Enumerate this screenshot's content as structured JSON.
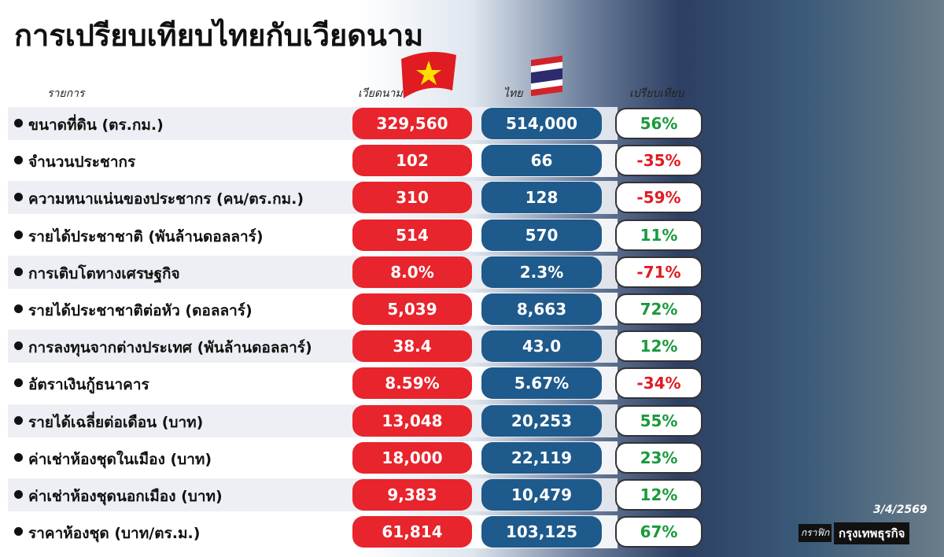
{
  "header": {
    "title": "การเปรียบเทียบไทยกับเวียดนาม",
    "col_item": "รายการ",
    "col_vietnam": "เวียดนาม",
    "col_thai": "ไทย",
    "col_compare": "เปรียบเทียบ"
  },
  "table": {
    "rows": [
      [
        "ขนาดที่ดิน (ตร.กม.)",
        "329,560",
        "514,000",
        "56%"
      ],
      [
        "จำนวนประชากร",
        "102",
        "66",
        "-35%"
      ],
      [
        "ความหนาแน่นของประชากร (คน/ตร.กม.)",
        "310",
        "128",
        "-59%"
      ],
      [
        "รายได้ประชาชาติ (พันล้านดอลลาร์)",
        "514",
        "570",
        "11%"
      ],
      [
        "การเติบโตทางเศรษฐกิจ",
        "8.0%",
        "2.3%",
        "-71%"
      ],
      [
        "รายได้ประชาชาติต่อหัว (ดอลลาร์)",
        "5,039",
        "8,663",
        "72%"
      ],
      [
        "การลงทุนจากต่างประเทศ (พันล้านดอลลาร์)",
        "38.4",
        "43.0",
        "12%"
      ],
      [
        "อัตราเงินกู้ธนาคาร",
        "8.59%",
        "5.67%",
        "-34%"
      ],
      [
        "รายได้เฉลี่ยต่อเดือน (บาท)",
        "13,048",
        "20,253",
        "55%"
      ],
      [
        "ค่าเช่าห้องชุดในเมือง (บาท)",
        "18,000",
        "22,119",
        "23%"
      ],
      [
        "ค่าเช่าห้องชุดนอกเมือง (บาท)",
        "9,383",
        "10,479",
        "12%"
      ],
      [
        "ราคาห้องชุด (บาท/ตร.ม.)",
        "61,814",
        "103,125",
        "67%"
      ]
    ]
  },
  "footer": {
    "date": "3/4/2569",
    "credit_label": "กราฟิก",
    "credit": "กรุงเทพธุรกิจ"
  }
}
